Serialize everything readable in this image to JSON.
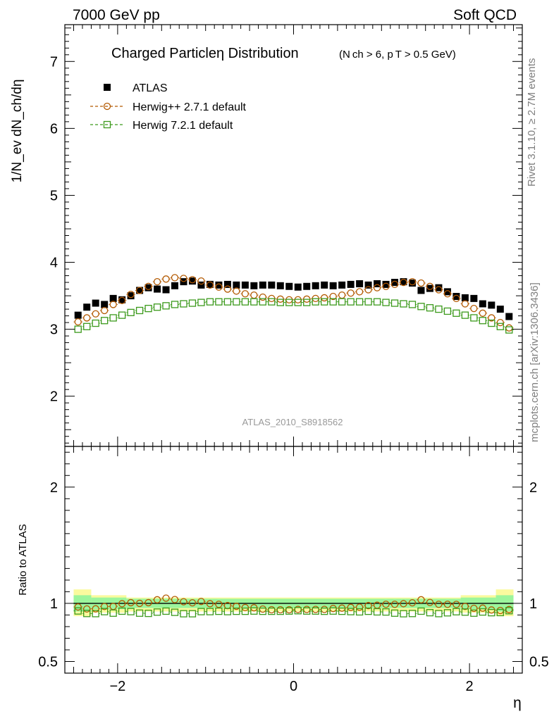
{
  "header": {
    "left": "7000 GeV pp",
    "right": "Soft QCD"
  },
  "plot_title": {
    "main": "Charged Particleη Distribution",
    "sub": "(N ch > 6, p T > 0.5 GeV)"
  },
  "side_labels": {
    "rivet": "Rivet 3.1.10, ≥ 2.7M events",
    "mcplots": "mcplots.cern.ch [arXiv:1306.3436]"
  },
  "watermark": "ATLAS_2010_S8918562",
  "colors": {
    "atlas": "#000000",
    "herwigpp": "#b35900",
    "herwig7": "#3c9a1c",
    "band_inner": "#9cf59c",
    "band_outer": "#fafa9e"
  },
  "chart_data": [
    {
      "type": "scatter",
      "title": "Charged Particleη Distribution",
      "xlabel": "η",
      "ylabel": "1/N_ev dN_ch/dη",
      "xlim": [
        -2.6,
        2.6
      ],
      "ylim": [
        1.25,
        7.55
      ],
      "y_ticks": [
        2,
        3,
        4,
        5,
        6,
        7
      ],
      "x_ticks": [
        -2,
        0,
        2
      ],
      "legend_position": "top-left",
      "x": [
        -2.45,
        -2.35,
        -2.25,
        -2.15,
        -2.05,
        -1.95,
        -1.85,
        -1.75,
        -1.65,
        -1.55,
        -1.45,
        -1.35,
        -1.25,
        -1.15,
        -1.05,
        -0.95,
        -0.85,
        -0.75,
        -0.65,
        -0.55,
        -0.45,
        -0.35,
        -0.25,
        -0.15,
        -0.05,
        0.05,
        0.15,
        0.25,
        0.35,
        0.45,
        0.55,
        0.65,
        0.75,
        0.85,
        0.95,
        1.05,
        1.15,
        1.25,
        1.35,
        1.45,
        1.55,
        1.65,
        1.75,
        1.85,
        1.95,
        2.05,
        2.15,
        2.25,
        2.35,
        2.45
      ],
      "series": [
        {
          "name": "ATLAS",
          "marker": "filled-square",
          "values": [
            3.21,
            3.33,
            3.39,
            3.37,
            3.46,
            3.44,
            3.5,
            3.58,
            3.62,
            3.6,
            3.59,
            3.65,
            3.71,
            3.72,
            3.66,
            3.67,
            3.66,
            3.67,
            3.66,
            3.66,
            3.65,
            3.66,
            3.66,
            3.65,
            3.64,
            3.63,
            3.64,
            3.65,
            3.66,
            3.65,
            3.66,
            3.67,
            3.68,
            3.66,
            3.68,
            3.67,
            3.7,
            3.71,
            3.69,
            3.58,
            3.61,
            3.62,
            3.56,
            3.49,
            3.47,
            3.46,
            3.38,
            3.36,
            3.3,
            3.19
          ]
        },
        {
          "name": "Herwig++ 2.7.1 default",
          "marker": "open-circle",
          "values": [
            3.11,
            3.17,
            3.23,
            3.28,
            3.37,
            3.43,
            3.52,
            3.58,
            3.64,
            3.71,
            3.75,
            3.77,
            3.76,
            3.74,
            3.72,
            3.66,
            3.63,
            3.6,
            3.57,
            3.53,
            3.51,
            3.48,
            3.46,
            3.45,
            3.44,
            3.44,
            3.45,
            3.46,
            3.47,
            3.49,
            3.51,
            3.54,
            3.56,
            3.59,
            3.62,
            3.64,
            3.67,
            3.7,
            3.71,
            3.69,
            3.64,
            3.59,
            3.53,
            3.46,
            3.38,
            3.31,
            3.24,
            3.17,
            3.1,
            3.02
          ]
        },
        {
          "name": "Herwig 7.2.1 default",
          "marker": "open-square",
          "values": [
            3.0,
            3.04,
            3.09,
            3.13,
            3.17,
            3.21,
            3.25,
            3.28,
            3.31,
            3.33,
            3.35,
            3.37,
            3.38,
            3.39,
            3.4,
            3.41,
            3.41,
            3.41,
            3.41,
            3.41,
            3.41,
            3.41,
            3.41,
            3.4,
            3.4,
            3.4,
            3.4,
            3.41,
            3.41,
            3.41,
            3.41,
            3.41,
            3.41,
            3.41,
            3.41,
            3.4,
            3.39,
            3.38,
            3.37,
            3.34,
            3.32,
            3.3,
            3.27,
            3.24,
            3.21,
            3.17,
            3.13,
            3.09,
            3.04,
            2.99
          ]
        }
      ]
    },
    {
      "type": "scatter",
      "title": "",
      "xlabel": "η",
      "ylabel": "Ratio to ATLAS",
      "xlim": [
        -2.6,
        2.6
      ],
      "ylim": [
        0.4,
        2.35
      ],
      "y_ticks": [
        0.5,
        1,
        2
      ],
      "x_ticks": [
        -2,
        0,
        2
      ],
      "reference_line": 1,
      "band_segments": [
        {
          "x0": -2.5,
          "x1": -2.3,
          "inner": [
            0.93,
            1.07
          ],
          "outer": [
            0.89,
            1.12
          ]
        },
        {
          "x0": -2.3,
          "x1": -1.9,
          "inner": [
            0.95,
            1.05
          ],
          "outer": [
            0.92,
            1.07
          ]
        },
        {
          "x0": -1.9,
          "x1": 1.9,
          "inner": [
            0.96,
            1.04
          ],
          "outer": [
            0.93,
            1.05
          ]
        },
        {
          "x0": 1.9,
          "x1": 2.3,
          "inner": [
            0.95,
            1.05
          ],
          "outer": [
            0.92,
            1.07
          ]
        },
        {
          "x0": 2.3,
          "x1": 2.5,
          "inner": [
            0.93,
            1.07
          ],
          "outer": [
            0.89,
            1.12
          ]
        }
      ],
      "series": [
        {
          "name": "Herwig++ 2.7.1 default",
          "marker": "open-circle",
          "values": [
            0.969,
            0.952,
            0.953,
            0.973,
            0.974,
            0.997,
            1.006,
            1.0,
            1.006,
            1.031,
            1.045,
            1.033,
            1.014,
            1.005,
            1.016,
            0.997,
            0.992,
            0.981,
            0.975,
            0.964,
            0.962,
            0.951,
            0.945,
            0.945,
            0.945,
            0.948,
            0.948,
            0.948,
            0.948,
            0.956,
            0.959,
            0.965,
            0.967,
            0.981,
            0.984,
            0.992,
            0.992,
            0.997,
            1.005,
            1.031,
            1.008,
            0.992,
            0.992,
            0.991,
            0.974,
            0.957,
            0.959,
            0.943,
            0.939,
            0.947
          ]
        },
        {
          "name": "Herwig 7.2.1 default",
          "marker": "open-square",
          "values": [
            0.935,
            0.913,
            0.912,
            0.929,
            0.916,
            0.933,
            0.929,
            0.916,
            0.914,
            0.925,
            0.933,
            0.923,
            0.911,
            0.911,
            0.929,
            0.929,
            0.932,
            0.929,
            0.932,
            0.932,
            0.934,
            0.932,
            0.932,
            0.932,
            0.934,
            0.937,
            0.934,
            0.934,
            0.932,
            0.934,
            0.932,
            0.929,
            0.927,
            0.932,
            0.927,
            0.926,
            0.916,
            0.911,
            0.913,
            0.933,
            0.92,
            0.912,
            0.919,
            0.928,
            0.925,
            0.916,
            0.926,
            0.92,
            0.921,
            0.937
          ]
        }
      ]
    }
  ]
}
